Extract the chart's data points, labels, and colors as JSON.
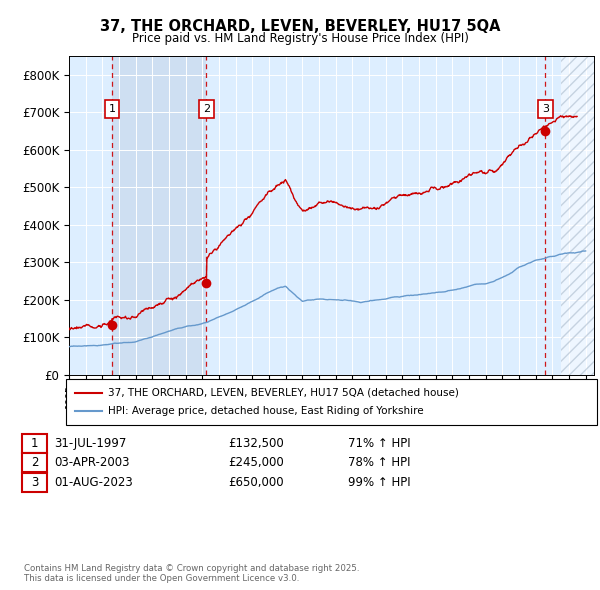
{
  "title": "37, THE ORCHARD, LEVEN, BEVERLEY, HU17 5QA",
  "subtitle": "Price paid vs. HM Land Registry's House Price Index (HPI)",
  "xlim": [
    1995.0,
    2026.5
  ],
  "ylim": [
    0,
    850000
  ],
  "yticks": [
    0,
    100000,
    200000,
    300000,
    400000,
    500000,
    600000,
    700000,
    800000
  ],
  "ytick_labels": [
    "£0",
    "£100K",
    "£200K",
    "£300K",
    "£400K",
    "£500K",
    "£600K",
    "£700K",
    "£800K"
  ],
  "sale_dates_num": [
    1997.58,
    2003.25,
    2023.58
  ],
  "sale_prices": [
    132500,
    245000,
    650000
  ],
  "sale_labels": [
    "1",
    "2",
    "3"
  ],
  "legend_line1": "37, THE ORCHARD, LEVEN, BEVERLEY, HU17 5QA (detached house)",
  "legend_line2": "HPI: Average price, detached house, East Riding of Yorkshire",
  "table_rows": [
    [
      "1",
      "31-JUL-1997",
      "£132,500",
      "71% ↑ HPI"
    ],
    [
      "2",
      "03-APR-2003",
      "£245,000",
      "78% ↑ HPI"
    ],
    [
      "3",
      "01-AUG-2023",
      "£650,000",
      "99% ↑ HPI"
    ]
  ],
  "footer": "Contains HM Land Registry data © Crown copyright and database right 2025.\nThis data is licensed under the Open Government Licence v3.0.",
  "red_color": "#cc0000",
  "blue_color": "#6699cc",
  "shade_color": "#ccddf0",
  "background_color": "#ddeeff",
  "hatch_color": "#bbccdd"
}
